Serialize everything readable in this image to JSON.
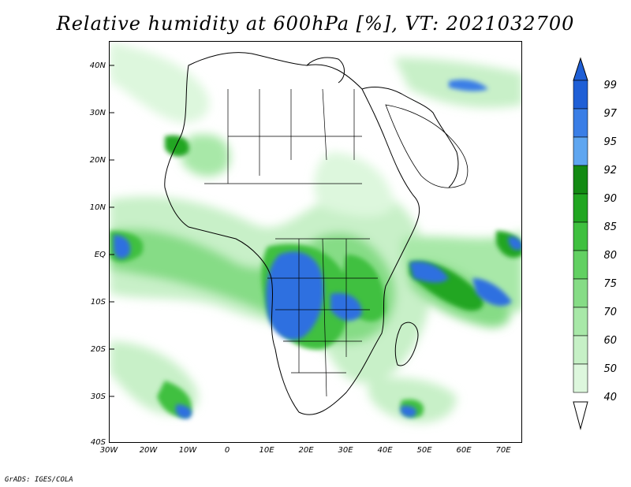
{
  "title": "Relative humidity at 600hPa [%], VT: 2021032700",
  "credit": "GrADS: IGES/COLA",
  "map": {
    "variable": "Relative humidity",
    "level": "600hPa",
    "units": "%",
    "valid_time": "2021032700",
    "lon_range": [
      -30,
      75
    ],
    "lat_range": [
      -40,
      45
    ],
    "lat_labels": [
      "40N",
      "30N",
      "20N",
      "10N",
      "EQ",
      "10S",
      "20S",
      "30S",
      "40S"
    ],
    "lon_labels": [
      "30W",
      "20W",
      "10W",
      "0",
      "10E",
      "20E",
      "30E",
      "40E",
      "50E",
      "60E",
      "70E"
    ]
  },
  "colorbar": {
    "levels": [
      "99",
      "97",
      "95",
      "92",
      "90",
      "85",
      "80",
      "75",
      "70",
      "60",
      "50",
      "40"
    ],
    "colors": [
      "#1f5fd6",
      "#3a7ee6",
      "#5fa6f0",
      "#138a13",
      "#21a621",
      "#3fc03f",
      "#62d062",
      "#86dc86",
      "#a8e8a8",
      "#c6f0c6",
      "#ddf7dd",
      "#f0fcf0"
    ]
  }
}
